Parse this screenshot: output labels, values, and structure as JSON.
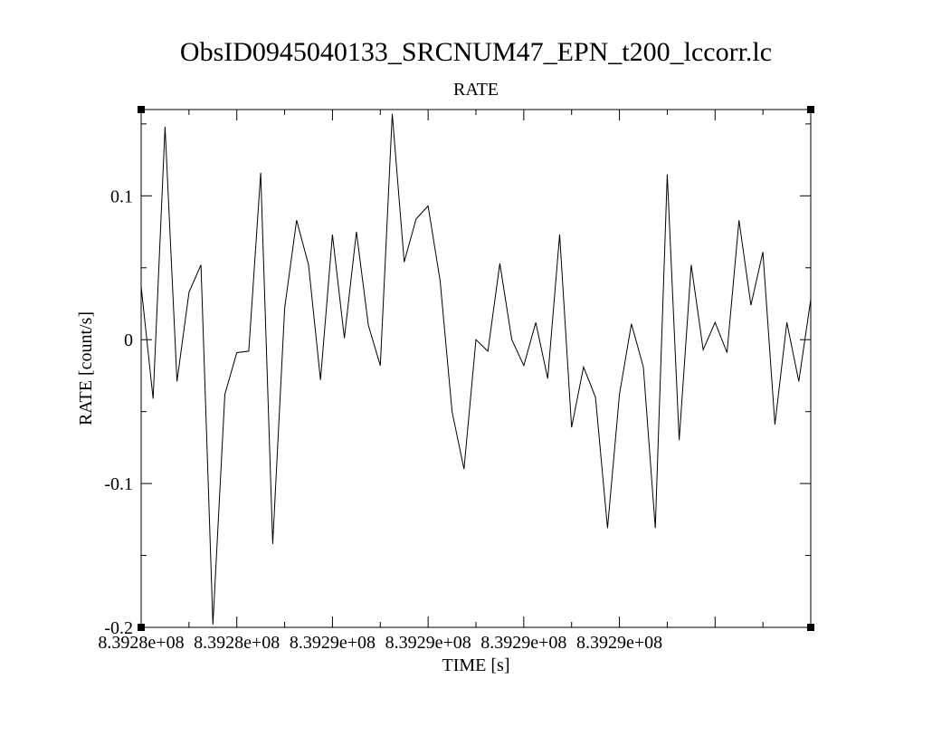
{
  "chart_data": {
    "type": "line",
    "title": "ObsID0945040133_SRCNUM47_EPN_t200_lccorr.lc",
    "subtitle": "RATE",
    "xlabel": "TIME [s]",
    "ylabel": "RATE [count/s]",
    "xlim": [
      839280000,
      839294000
    ],
    "ylim": [
      -0.2,
      0.16
    ],
    "x_tick_labels": [
      "8.3928e+08",
      "8.3928e+08",
      "8.3929e+08",
      "8.3929e+08",
      "8.3929e+08",
      "8.3929e+08"
    ],
    "y_tick_labels": [
      "0.1",
      "0",
      "-0.1",
      "-0.2"
    ],
    "y_tick_values": [
      0.1,
      0,
      -0.1,
      -0.2
    ],
    "grid": false,
    "series": [
      {
        "values": [
          0.037,
          -0.041,
          0.148,
          -0.029,
          0.033,
          0.052,
          -0.198,
          -0.038,
          -0.009,
          -0.008,
          0.116,
          -0.142,
          0.022,
          0.083,
          0.052,
          -0.028,
          0.073,
          0.001,
          0.075,
          0.01,
          -0.018,
          0.157,
          0.054,
          0.084,
          0.093,
          0.041,
          -0.05,
          -0.09,
          0.0,
          -0.008,
          0.053,
          0.0,
          -0.018,
          0.012,
          -0.027,
          0.073,
          -0.061,
          -0.019,
          -0.04,
          -0.131,
          -0.038,
          0.011,
          -0.019,
          -0.131,
          0.115,
          -0.07,
          0.052,
          -0.007,
          0.012,
          -0.009,
          0.083,
          0.024,
          0.061,
          -0.059,
          0.012,
          -0.029,
          0.028
        ]
      }
    ]
  }
}
